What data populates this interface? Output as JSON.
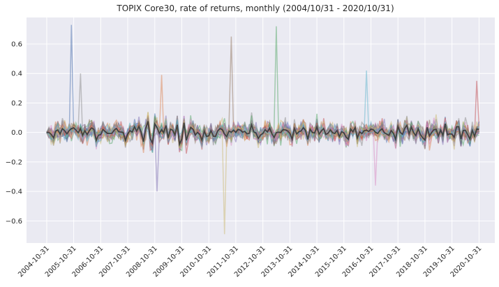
{
  "chart_data": {
    "type": "line",
    "title": "TOPIX Core30, rate of returns, monthly (2004/10/31 - 2020/10/31)",
    "xlabel": "",
    "ylabel": "",
    "grid": true,
    "legend": "none",
    "x_tick_labels": [
      "2004-10-31",
      "2005-10-31",
      "2006-10-31",
      "2007-10-31",
      "2008-10-31",
      "2009-10-31",
      "2010-10-31",
      "2011-10-31",
      "2012-10-31",
      "2013-10-31",
      "2014-10-31",
      "2015-10-31",
      "2016-10-31",
      "2017-10-31",
      "2018-10-31",
      "2019-10-31",
      "2020-10-31"
    ],
    "y_ticks": [
      -0.6,
      -0.4,
      -0.2,
      0.0,
      0.2,
      0.4,
      0.6
    ],
    "y_tick_labels": [
      "−0.6",
      "−0.4",
      "−0.2",
      "0.0",
      "0.2",
      "0.4",
      "0.6"
    ],
    "xlim": [
      "2004-02-01",
      "2021-06-01"
    ],
    "ylim": [
      -0.75,
      0.78
    ],
    "series_count": 30,
    "series_colors": [
      "#4c72b0",
      "#dd8452",
      "#55a868",
      "#c44e52",
      "#8172b3",
      "#937860",
      "#da8bc3",
      "#8c8c8c",
      "#ccb974",
      "#64b5cd"
    ],
    "mean_series_color": "#333333",
    "notable_points": [
      {
        "date": "2005-09-30",
        "value": 0.73
      },
      {
        "date": "2006-01-31",
        "value": 0.4
      },
      {
        "date": "2008-11-30",
        "value": -0.4
      },
      {
        "date": "2009-01-31",
        "value": 0.39
      },
      {
        "date": "2011-05-31",
        "value": -0.69
      },
      {
        "date": "2011-08-31",
        "value": 0.65
      },
      {
        "date": "2013-04-30",
        "value": 0.72
      },
      {
        "date": "2016-08-31",
        "value": 0.42
      },
      {
        "date": "2016-12-31",
        "value": -0.36
      },
      {
        "date": "2020-09-30",
        "value": 0.35
      }
    ]
  }
}
